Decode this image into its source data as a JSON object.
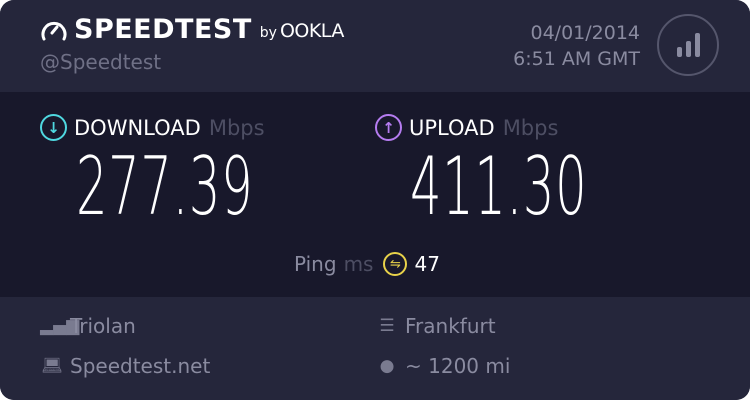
{
  "header": {
    "brand": "SPEEDTEST",
    "by": "by",
    "partner": "OOKLA",
    "handle": "@Speedtest",
    "date": "04/01/2014",
    "time": "6:51 AM GMT"
  },
  "download": {
    "label": "DOWNLOAD",
    "unit": "Mbps",
    "value": "277.39",
    "color": "#4fd8e0"
  },
  "upload": {
    "label": "UPLOAD",
    "unit": "Mbps",
    "value": "411.30",
    "color": "#b57cf0"
  },
  "ping": {
    "label": "Ping",
    "unit": "ms",
    "value": "47",
    "color": "#e8d24a"
  },
  "footer": {
    "isp": "Triolan",
    "host": "Speedtest.net",
    "server": "Frankfurt",
    "distance": "~ 1200 mi"
  },
  "icons": {
    "logo": "gauge-icon",
    "results": "signal-bars-icon",
    "download": "arrow-down-circle-icon",
    "upload": "arrow-up-circle-icon",
    "ping": "ping-icon",
    "isp": "signal-bars-icon",
    "host": "laptop-icon",
    "server": "server-icon",
    "distance": "map-pin-icon"
  }
}
